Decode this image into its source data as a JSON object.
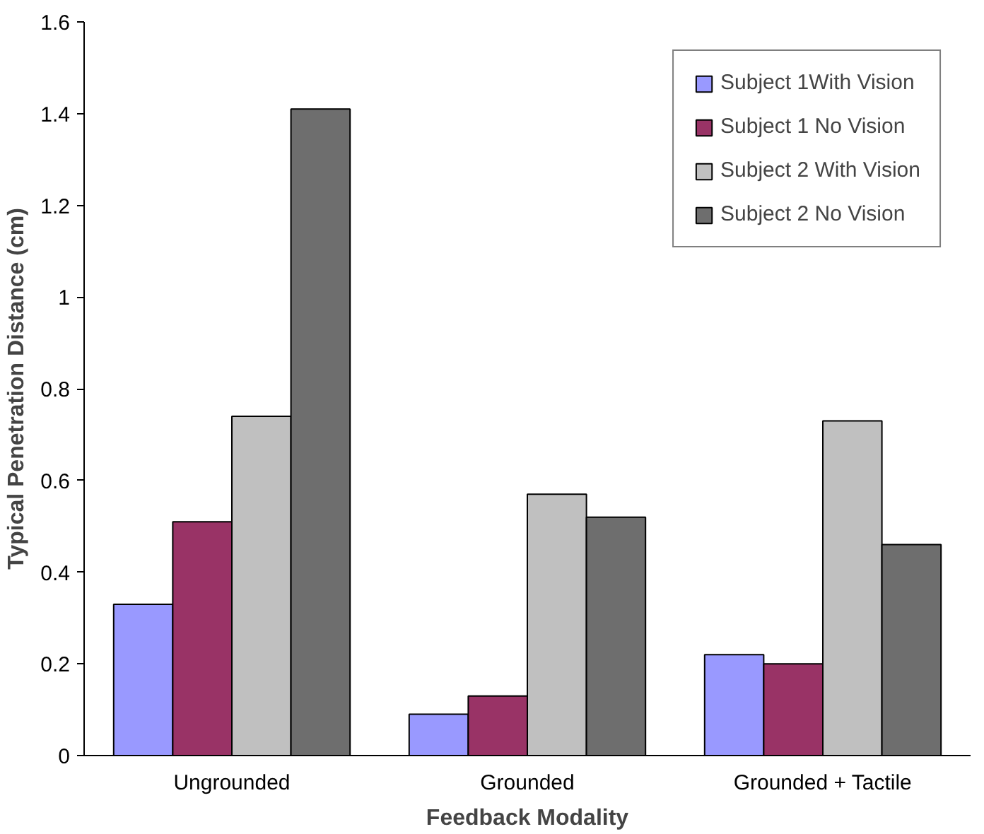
{
  "chart_data": {
    "type": "bar",
    "xlabel": "Feedback Modality",
    "ylabel": "Typical Penetration Distance (cm)",
    "categories": [
      "Ungrounded",
      "Grounded",
      "Grounded + Tactile"
    ],
    "series": [
      {
        "name": "Subject 1With Vision",
        "color": "#9999ff",
        "values": [
          0.33,
          0.09,
          0.22
        ]
      },
      {
        "name": "Subject 1 No Vision",
        "color": "#993366",
        "values": [
          0.51,
          0.13,
          0.2
        ]
      },
      {
        "name": "Subject 2 With Vision",
        "color": "#c0c0c0",
        "values": [
          0.74,
          0.57,
          0.73
        ]
      },
      {
        "name": "Subject 2 No Vision",
        "color": "#6e6e6e",
        "values": [
          1.41,
          0.52,
          0.46
        ]
      }
    ],
    "ylim": [
      0,
      1.6
    ],
    "yticks": [
      0,
      0.2,
      0.4,
      0.6,
      0.8,
      1,
      1.2,
      1.4,
      1.6
    ],
    "grid": false,
    "legend": "top right"
  }
}
